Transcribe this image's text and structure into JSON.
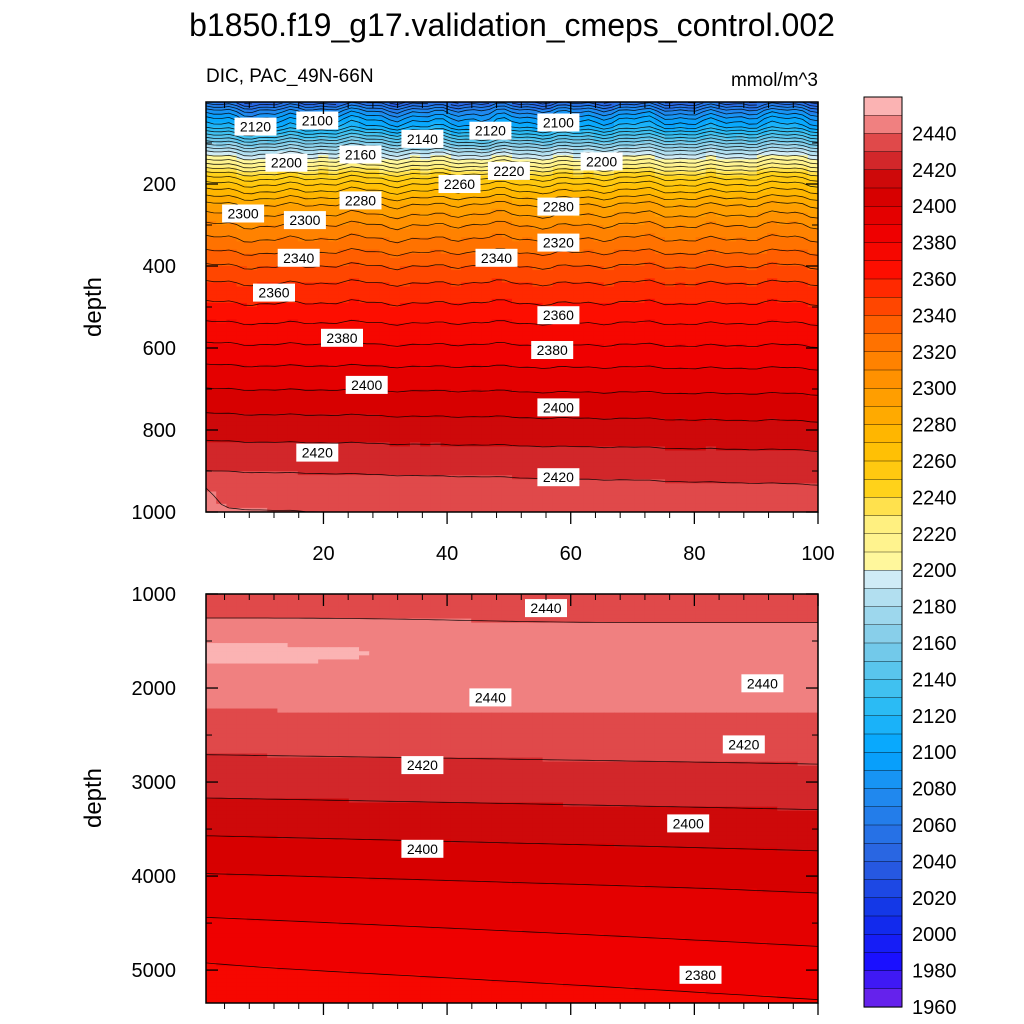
{
  "chart_data": {
    "type": "contour",
    "title": "b1850.f19_g17.validation_cmeps_control.002",
    "variable_label": "DIC, PAC_49N-66N",
    "units": "mmol/m^3",
    "ylabel": "depth",
    "x_ticks": [
      20,
      40,
      60,
      80,
      100
    ],
    "xlim": [
      1,
      100
    ],
    "colorbar": {
      "levels": [
        1960,
        1970,
        1980,
        1990,
        2000,
        2010,
        2020,
        2030,
        2040,
        2050,
        2060,
        2070,
        2080,
        2090,
        2100,
        2110,
        2120,
        2130,
        2140,
        2150,
        2160,
        2170,
        2180,
        2190,
        2200,
        2210,
        2220,
        2230,
        2240,
        2250,
        2260,
        2270,
        2280,
        2290,
        2300,
        2310,
        2320,
        2330,
        2340,
        2350,
        2360,
        2370,
        2380,
        2390,
        2400,
        2410,
        2420,
        2430,
        2440,
        2450
      ],
      "labels": [
        "1960",
        "1980",
        "2000",
        "2020",
        "2040",
        "2060",
        "2080",
        "2100",
        "2120",
        "2140",
        "2160",
        "2180",
        "2200",
        "2220",
        "2240",
        "2260",
        "2280",
        "2300",
        "2320",
        "2340",
        "2360",
        "2380",
        "2400",
        "2420",
        "2440"
      ],
      "label_values": [
        1960,
        1980,
        2000,
        2020,
        2040,
        2060,
        2080,
        2100,
        2120,
        2140,
        2160,
        2180,
        2200,
        2220,
        2240,
        2260,
        2280,
        2300,
        2320,
        2340,
        2360,
        2380,
        2400,
        2420,
        2440
      ]
    },
    "panels": [
      {
        "name": "upper",
        "ylim": [
          0,
          1000
        ],
        "y_ticks": [
          200,
          400,
          600,
          800,
          1000
        ],
        "y_tick_labels": [
          "200",
          "400",
          "600",
          "800",
          "1000"
        ],
        "x_tick_labels": [
          "20",
          "40",
          "60",
          "80",
          "100"
        ],
        "depth_profile": [
          [
            0,
            2045
          ],
          [
            20,
            2075
          ],
          [
            40,
            2095
          ],
          [
            60,
            2110
          ],
          [
            80,
            2135
          ],
          [
            100,
            2160
          ],
          [
            120,
            2185
          ],
          [
            140,
            2205
          ],
          [
            160,
            2225
          ],
          [
            180,
            2245
          ],
          [
            200,
            2260
          ],
          [
            250,
            2290
          ],
          [
            300,
            2310
          ],
          [
            350,
            2325
          ],
          [
            400,
            2340
          ],
          [
            450,
            2352
          ],
          [
            500,
            2362
          ],
          [
            550,
            2372
          ],
          [
            600,
            2381
          ],
          [
            650,
            2390
          ],
          [
            700,
            2398
          ],
          [
            750,
            2406
          ],
          [
            800,
            2413
          ],
          [
            850,
            2420
          ],
          [
            900,
            2426
          ],
          [
            950,
            2432
          ],
          [
            1000,
            2436
          ]
        ],
        "contour_labels": [
          {
            "text": "2120",
            "x": 9,
            "y": 60
          },
          {
            "text": "2100",
            "x": 19,
            "y": 45
          },
          {
            "text": "2140",
            "x": 36,
            "y": 90
          },
          {
            "text": "2120",
            "x": 47,
            "y": 70
          },
          {
            "text": "2100",
            "x": 58,
            "y": 50
          },
          {
            "text": "2200",
            "x": 14,
            "y": 148
          },
          {
            "text": "2160",
            "x": 26,
            "y": 128
          },
          {
            "text": "2220",
            "x": 50,
            "y": 168
          },
          {
            "text": "2200",
            "x": 65,
            "y": 145
          },
          {
            "text": "2260",
            "x": 42,
            "y": 200
          },
          {
            "text": "2280",
            "x": 26,
            "y": 240
          },
          {
            "text": "2300",
            "x": 7,
            "y": 272
          },
          {
            "text": "2300",
            "x": 17,
            "y": 288
          },
          {
            "text": "2280",
            "x": 58,
            "y": 255
          },
          {
            "text": "2320",
            "x": 58,
            "y": 343
          },
          {
            "text": "2340",
            "x": 16,
            "y": 380
          },
          {
            "text": "2340",
            "x": 48,
            "y": 380
          },
          {
            "text": "2360",
            "x": 12,
            "y": 465
          },
          {
            "text": "2360",
            "x": 58,
            "y": 520
          },
          {
            "text": "2380",
            "x": 23,
            "y": 575
          },
          {
            "text": "2380",
            "x": 57,
            "y": 605
          },
          {
            "text": "2400",
            "x": 27,
            "y": 690
          },
          {
            "text": "2400",
            "x": 58,
            "y": 745
          },
          {
            "text": "2420",
            "x": 19,
            "y": 855
          },
          {
            "text": "2420",
            "x": 58,
            "y": 915
          }
        ]
      },
      {
        "name": "lower",
        "ylim": [
          1000,
          5350
        ],
        "y_ticks": [
          1000,
          2000,
          3000,
          4000,
          5000
        ],
        "y_tick_labels": [
          "1000",
          "2000",
          "3000",
          "4000",
          "5000"
        ],
        "contour_labels": [
          {
            "text": "2440",
            "x": 56,
            "y": 1150
          },
          {
            "text": "2440",
            "x": 47,
            "y": 2100
          },
          {
            "text": "2440",
            "x": 91,
            "y": 1950
          },
          {
            "text": "2420",
            "x": 36,
            "y": 2820
          },
          {
            "text": "2420",
            "x": 88,
            "y": 2600
          },
          {
            "text": "2400",
            "x": 36,
            "y": 3710
          },
          {
            "text": "2400",
            "x": 79,
            "y": 3440
          },
          {
            "text": "2380",
            "x": 81,
            "y": 5050
          }
        ]
      }
    ]
  }
}
